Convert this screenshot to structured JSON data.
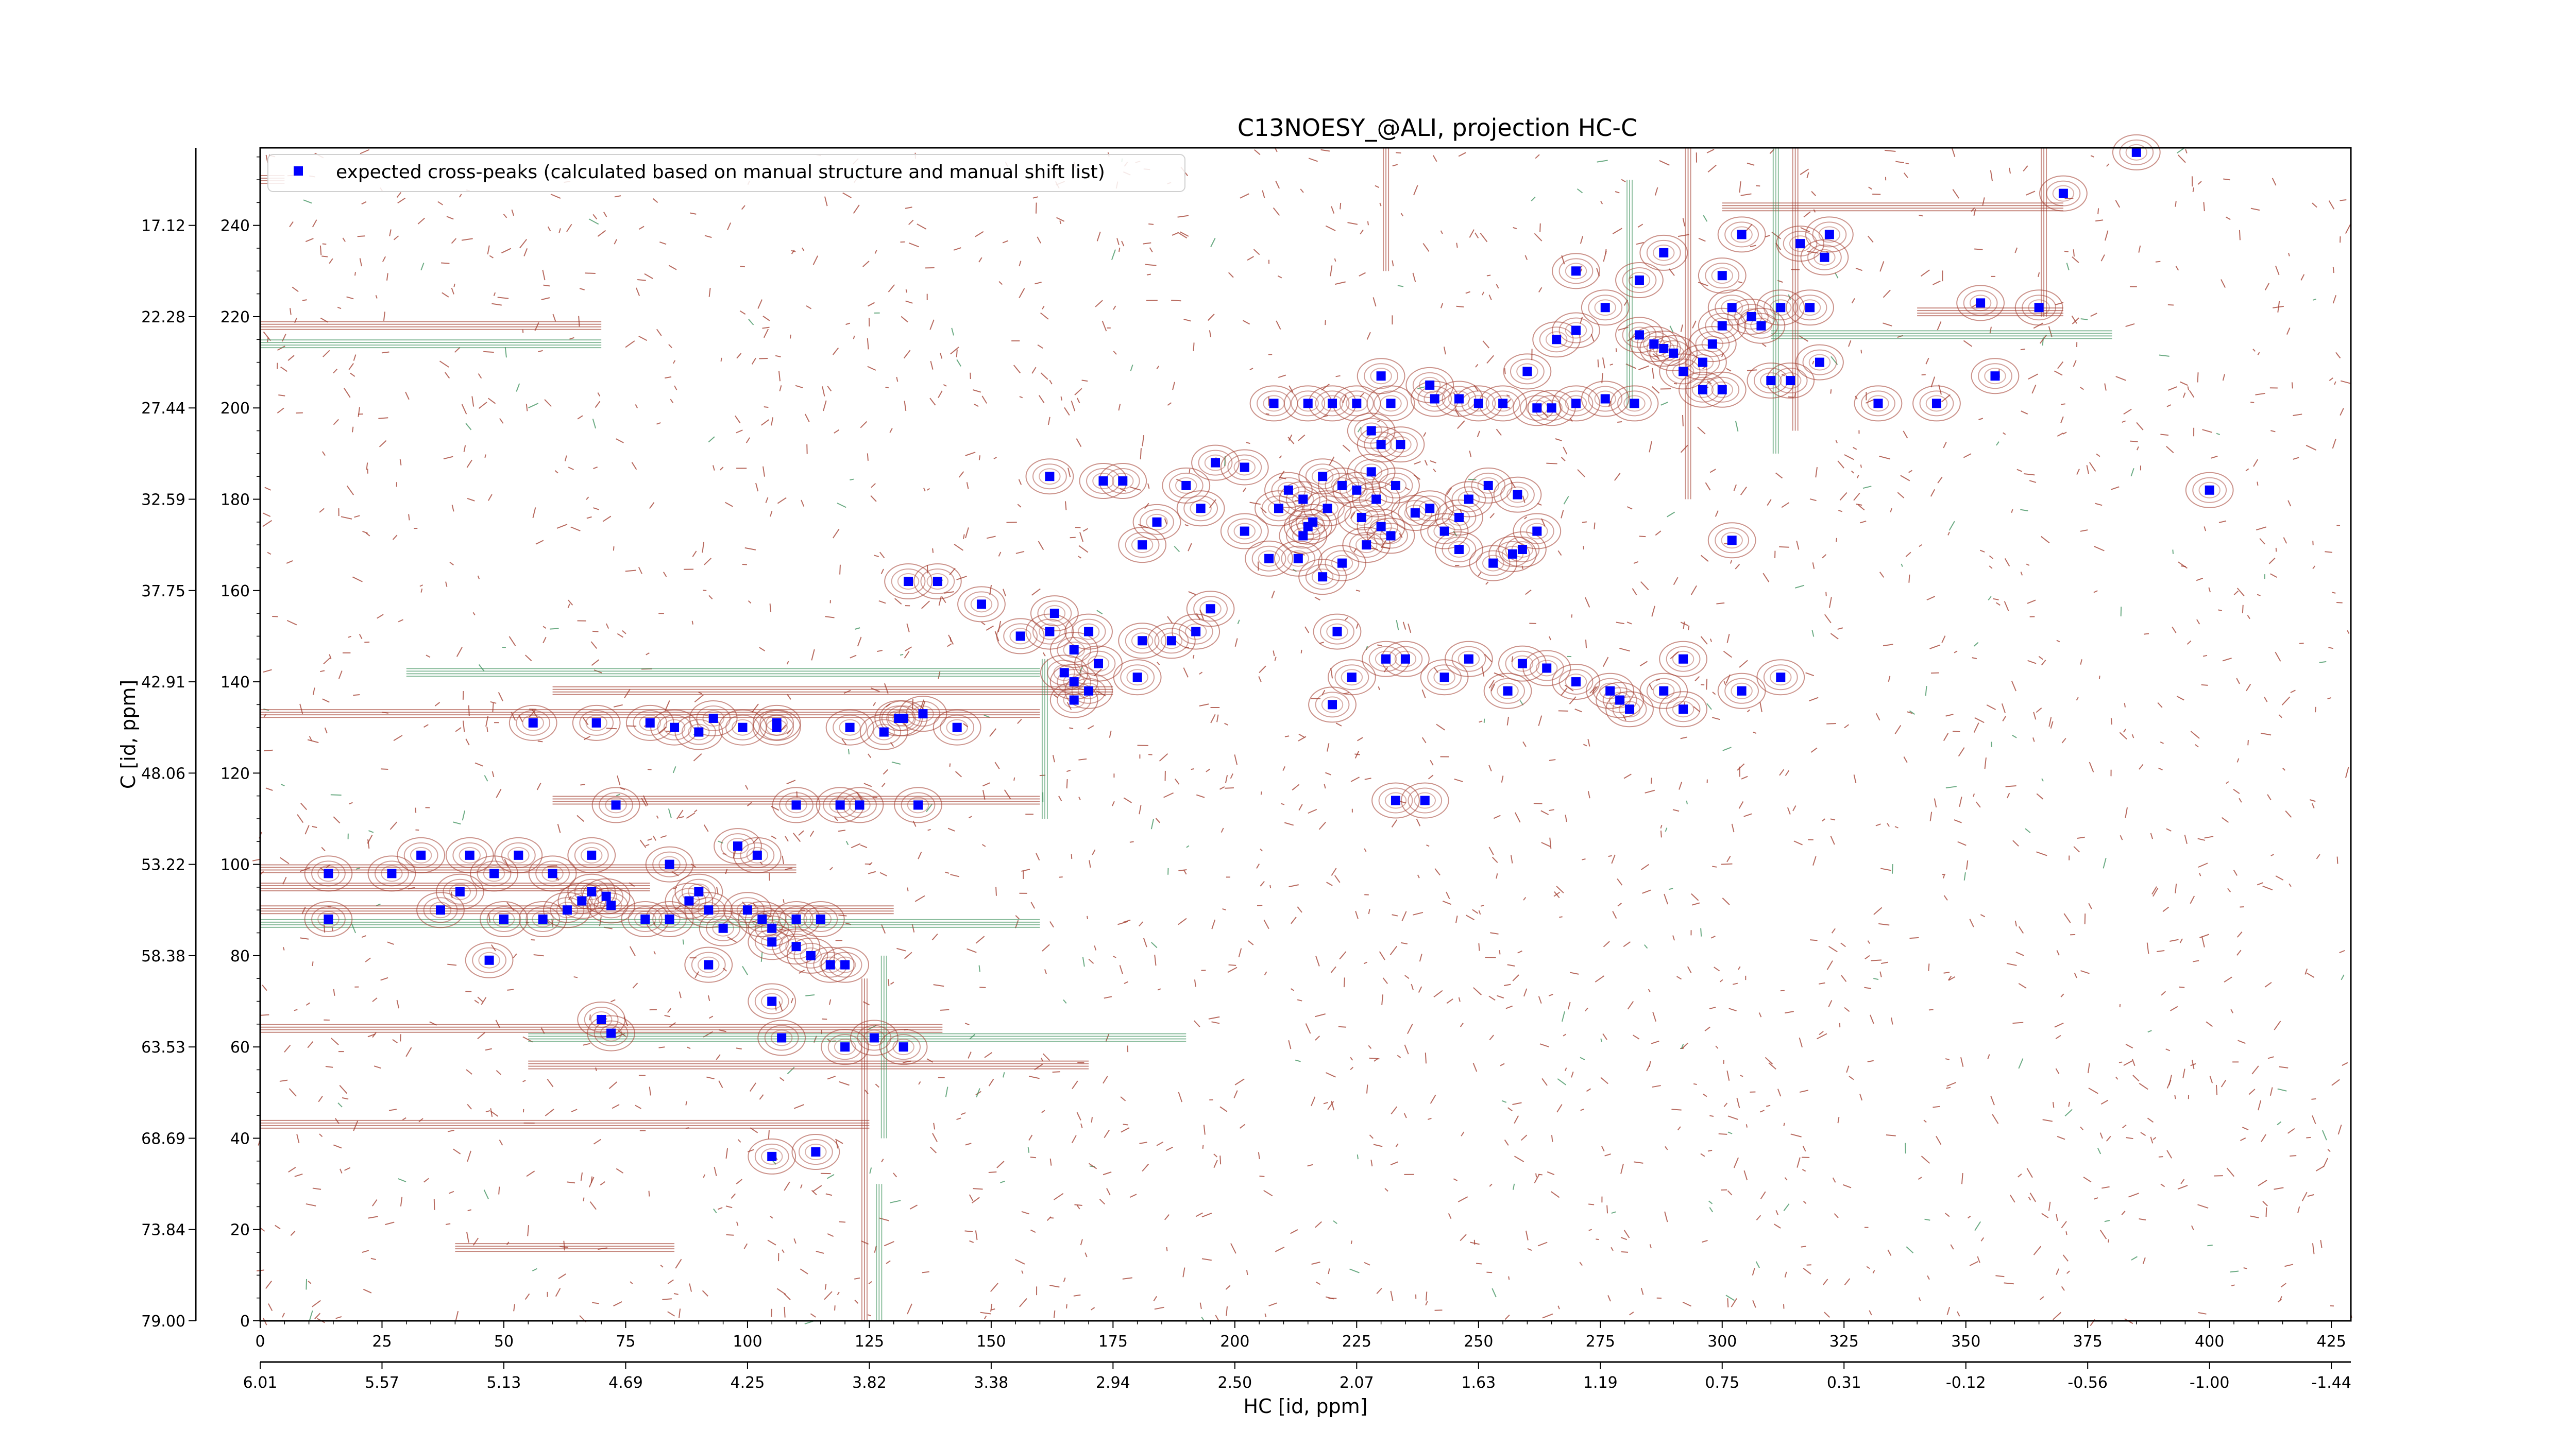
{
  "chart_data": {
    "type": "scatter",
    "title": "C13NOESY_@ALI, projection HC-C",
    "xlabel": "HC [id, ppm]",
    "ylabel": "C [id, ppm]",
    "x_index_range": [
      0,
      429
    ],
    "y_index_range": [
      0,
      257
    ],
    "x_index_ticks": [
      "0",
      "25",
      "50",
      "75",
      "100",
      "125",
      "150",
      "175",
      "200",
      "225",
      "250",
      "275",
      "300",
      "325",
      "350",
      "375",
      "400",
      "425"
    ],
    "x_ppm_ticks": [
      "6.01",
      "5.57",
      "5.13",
      "4.69",
      "4.25",
      "3.82",
      "3.38",
      "2.94",
      "2.50",
      "2.07",
      "1.63",
      "1.19",
      "0.75",
      "0.31",
      "-0.12",
      "-0.56",
      "-1.00",
      "-1.44"
    ],
    "y_index_ticks": [
      "0",
      "20",
      "40",
      "60",
      "80",
      "100",
      "120",
      "140",
      "160",
      "180",
      "200",
      "220",
      "240"
    ],
    "y_ppm_ticks": [
      "79.00",
      "73.84",
      "68.69",
      "63.53",
      "58.38",
      "53.22",
      "48.06",
      "42.91",
      "37.75",
      "32.59",
      "27.44",
      "22.28",
      "17.12"
    ],
    "legend": {
      "placement": "top-left",
      "entries": [
        "expected cross-peaks (calculated based on manual structure and manual shift list)"
      ]
    },
    "colors": {
      "positive_contour": "#a0382a",
      "negative_contour": "#3a8f5a",
      "peak_marker": "#0000ff"
    },
    "series": [
      {
        "name": "expected cross-peaks (calculated based on manual structure and manual shift list)",
        "marker": "square",
        "color": "#0000ff",
        "points": [
          [
            14,
            98
          ],
          [
            27,
            98
          ],
          [
            33,
            102
          ],
          [
            43,
            102
          ],
          [
            53,
            102
          ],
          [
            68,
            102
          ],
          [
            84,
            100
          ],
          [
            98,
            104
          ],
          [
            102,
            102
          ],
          [
            37,
            90
          ],
          [
            41,
            94
          ],
          [
            48,
            98
          ],
          [
            60,
            98
          ],
          [
            14,
            88
          ],
          [
            50,
            88
          ],
          [
            58,
            88
          ],
          [
            63,
            90
          ],
          [
            66,
            92
          ],
          [
            68,
            94
          ],
          [
            71,
            93
          ],
          [
            72,
            91
          ],
          [
            79,
            88
          ],
          [
            84,
            88
          ],
          [
            88,
            92
          ],
          [
            92,
            90
          ],
          [
            90,
            94
          ],
          [
            100,
            90
          ],
          [
            103,
            88
          ],
          [
            105,
            86
          ],
          [
            110,
            88
          ],
          [
            115,
            88
          ],
          [
            95,
            86
          ],
          [
            105,
            83
          ],
          [
            110,
            82
          ],
          [
            113,
            80
          ],
          [
            117,
            78
          ],
          [
            120,
            78
          ],
          [
            92,
            78
          ],
          [
            47,
            79
          ],
          [
            105,
            70
          ],
          [
            70,
            66
          ],
          [
            72,
            63
          ],
          [
            107,
            62
          ],
          [
            120,
            60
          ],
          [
            126,
            62
          ],
          [
            132,
            60
          ],
          [
            105,
            36
          ],
          [
            114,
            37
          ],
          [
            56,
            131
          ],
          [
            69,
            131
          ],
          [
            80,
            131
          ],
          [
            85,
            130
          ],
          [
            90,
            129
          ],
          [
            93,
            132
          ],
          [
            99,
            130
          ],
          [
            106,
            131
          ],
          [
            106,
            130
          ],
          [
            121,
            130
          ],
          [
            128,
            129
          ],
          [
            131,
            132
          ],
          [
            132,
            132
          ],
          [
            136,
            133
          ],
          [
            143,
            130
          ],
          [
            73,
            113
          ],
          [
            110,
            113
          ],
          [
            119,
            113
          ],
          [
            123,
            113
          ],
          [
            135,
            113
          ],
          [
            233,
            114
          ],
          [
            239,
            114
          ],
          [
            133,
            162
          ],
          [
            139,
            162
          ],
          [
            148,
            157
          ],
          [
            163,
            155
          ],
          [
            170,
            151
          ],
          [
            162,
            151
          ],
          [
            156,
            150
          ],
          [
            167,
            147
          ],
          [
            172,
            144
          ],
          [
            170,
            138
          ],
          [
            165,
            142
          ],
          [
            167,
            140
          ],
          [
            167,
            136
          ],
          [
            180,
            141
          ],
          [
            181,
            149
          ],
          [
            187,
            149
          ],
          [
            192,
            151
          ],
          [
            195,
            156
          ],
          [
            181,
            170
          ],
          [
            184,
            175
          ],
          [
            190,
            183
          ],
          [
            162,
            185
          ],
          [
            173,
            184
          ],
          [
            177,
            184
          ],
          [
            196,
            188
          ],
          [
            208,
            201
          ],
          [
            202,
            187
          ],
          [
            193,
            178
          ],
          [
            202,
            173
          ],
          [
            209,
            178
          ],
          [
            216,
            175
          ],
          [
            218,
            185
          ],
          [
            211,
            182
          ],
          [
            214,
            180
          ],
          [
            215,
            174
          ],
          [
            214,
            172
          ],
          [
            219,
            178
          ],
          [
            222,
            183
          ],
          [
            207,
            167
          ],
          [
            213,
            167
          ],
          [
            218,
            163
          ],
          [
            222,
            166
          ],
          [
            227,
            170
          ],
          [
            230,
            174
          ],
          [
            226,
            176
          ],
          [
            229,
            180
          ],
          [
            232,
            172
          ],
          [
            237,
            177
          ],
          [
            240,
            178
          ],
          [
            243,
            173
          ],
          [
            246,
            176
          ],
          [
            248,
            180
          ],
          [
            252,
            183
          ],
          [
            246,
            169
          ],
          [
            257,
            168
          ],
          [
            262,
            173
          ],
          [
            253,
            166
          ],
          [
            259,
            169
          ],
          [
            258,
            181
          ],
          [
            225,
            182
          ],
          [
            228,
            186
          ],
          [
            233,
            183
          ],
          [
            228,
            195
          ],
          [
            230,
            192
          ],
          [
            234,
            192
          ],
          [
            225,
            201
          ],
          [
            232,
            201
          ],
          [
            241,
            202
          ],
          [
            246,
            202
          ],
          [
            250,
            201
          ],
          [
            255,
            201
          ],
          [
            262,
            200
          ],
          [
            265,
            200
          ],
          [
            270,
            201
          ],
          [
            276,
            202
          ],
          [
            282,
            201
          ],
          [
            215,
            201
          ],
          [
            220,
            201
          ],
          [
            230,
            207
          ],
          [
            240,
            205
          ],
          [
            260,
            208
          ],
          [
            266,
            215
          ],
          [
            270,
            217
          ],
          [
            276,
            222
          ],
          [
            283,
            216
          ],
          [
            286,
            214
          ],
          [
            288,
            213
          ],
          [
            290,
            212
          ],
          [
            292,
            208
          ],
          [
            296,
            210
          ],
          [
            298,
            214
          ],
          [
            300,
            218
          ],
          [
            302,
            222
          ],
          [
            306,
            220
          ],
          [
            308,
            218
          ],
          [
            312,
            222
          ],
          [
            318,
            222
          ],
          [
            321,
            233
          ],
          [
            322,
            238
          ],
          [
            296,
            204
          ],
          [
            300,
            204
          ],
          [
            310,
            206
          ],
          [
            314,
            206
          ],
          [
            320,
            210
          ],
          [
            332,
            201
          ],
          [
            344,
            201
          ],
          [
            356,
            207
          ],
          [
            283,
            228
          ],
          [
            270,
            230
          ],
          [
            300,
            229
          ],
          [
            288,
            234
          ],
          [
            304,
            238
          ],
          [
            316,
            236
          ],
          [
            353,
            223
          ],
          [
            365,
            222
          ],
          [
            370,
            247
          ],
          [
            385,
            256
          ],
          [
            400,
            182
          ],
          [
            302,
            171
          ],
          [
            221,
            151
          ],
          [
            220,
            135
          ],
          [
            224,
            141
          ],
          [
            231,
            145
          ],
          [
            235,
            145
          ],
          [
            248,
            145
          ],
          [
            243,
            141
          ],
          [
            256,
            138
          ],
          [
            259,
            144
          ],
          [
            264,
            143
          ],
          [
            270,
            140
          ],
          [
            277,
            138
          ],
          [
            288,
            138
          ],
          [
            292,
            145
          ],
          [
            292,
            134
          ],
          [
            304,
            138
          ],
          [
            312,
            141
          ],
          [
            279,
            136
          ],
          [
            281,
            134
          ]
        ]
      }
    ]
  }
}
